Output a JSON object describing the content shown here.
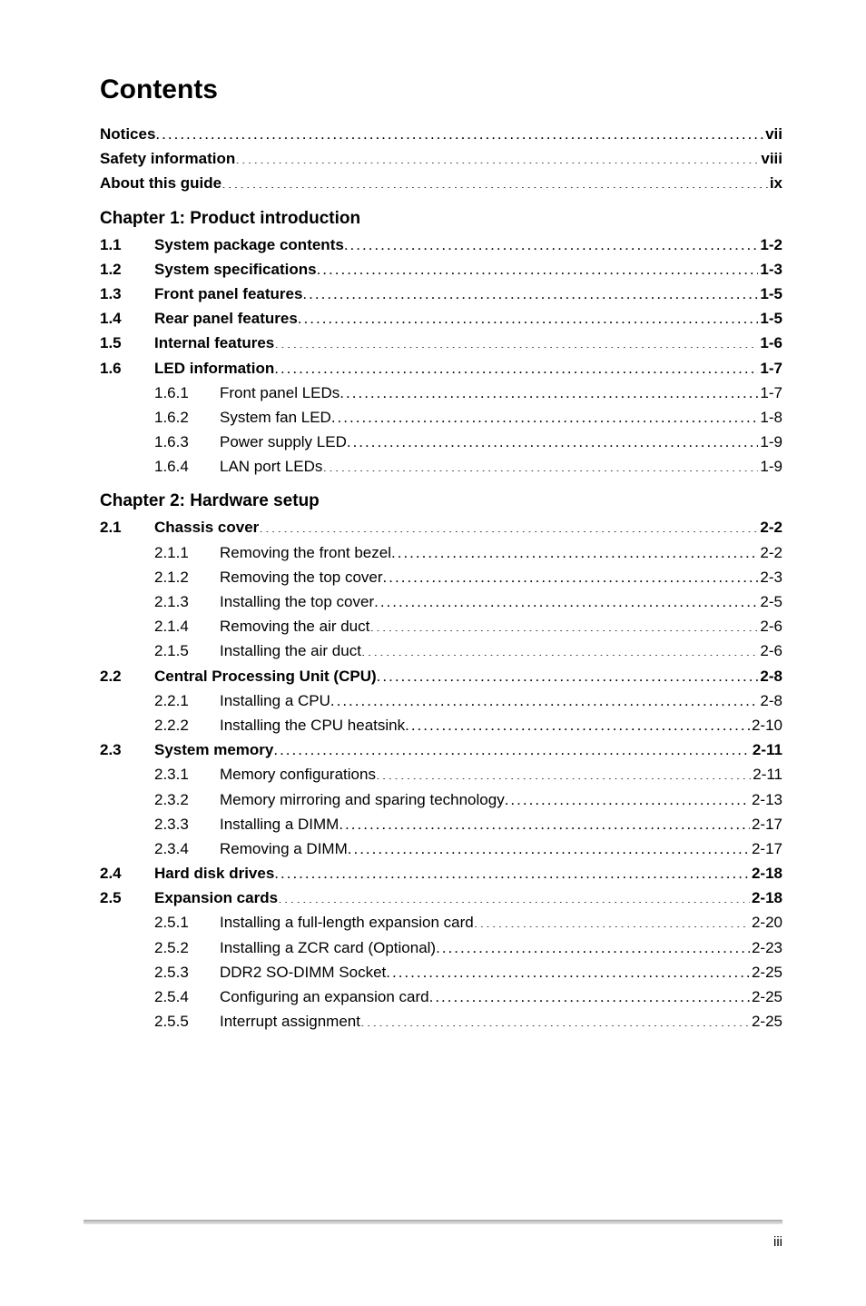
{
  "page": {
    "title": "Contents",
    "footer_pagenum": "iii",
    "title_fontsize": 30,
    "body_fontsize": 17,
    "chapter_heading_fontsize": 19,
    "font_family": "Arial",
    "text_color": "#000000",
    "background_color": "#ffffff",
    "outer_background_color": "#5a5a5a",
    "footer_rule_color": "#b9b9b9"
  },
  "front": [
    {
      "label": "Notices",
      "page": "vii"
    },
    {
      "label": "Safety information",
      "page": "viii"
    },
    {
      "label": "About this guide",
      "page": "ix"
    }
  ],
  "chap1": {
    "heading": "Chapter 1: Product introduction",
    "e11": {
      "num": "1.1",
      "label": "System package contents",
      "page": "1-2"
    },
    "e12": {
      "num": "1.2",
      "label": "System specifications",
      "page": "1-3"
    },
    "e13": {
      "num": "1.3",
      "label": "Front panel features",
      "page": "1-5"
    },
    "e14": {
      "num": "1.4",
      "label": "Rear panel features",
      "page": "1-5"
    },
    "e15": {
      "num": "1.5",
      "label": "Internal features",
      "page": "1-6"
    },
    "e16": {
      "num": "1.6",
      "label": "LED information",
      "page": "1-7"
    },
    "e161": {
      "num": "1.6.1",
      "label": "Front panel LEDs",
      "page": "1-7"
    },
    "e162": {
      "num": "1.6.2",
      "label": "System fan LED",
      "page": "1-8"
    },
    "e163": {
      "num": "1.6.3",
      "label": "Power supply LED",
      "page": "1-9"
    },
    "e164": {
      "num": "1.6.4",
      "label": "LAN port LEDs",
      "page": "1-9"
    }
  },
  "chap2": {
    "heading": "Chapter 2: Hardware setup",
    "e21": {
      "num": "2.1",
      "label": "Chassis cover",
      "page": "2-2"
    },
    "e211": {
      "num": "2.1.1",
      "label": "Removing the front bezel",
      "page": "2-2"
    },
    "e212": {
      "num": "2.1.2",
      "label": "Removing the top cover",
      "page": "2-3"
    },
    "e213": {
      "num": "2.1.3",
      "label": "Installing the top cover",
      "page": "2-5"
    },
    "e214": {
      "num": "2.1.4",
      "label": "Removing the air duct",
      "page": "2-6"
    },
    "e215": {
      "num": "2.1.5",
      "label": "Installing the air duct",
      "page": "2-6"
    },
    "e22": {
      "num": "2.2",
      "label": "Central Processing Unit (CPU)",
      "page": "2-8"
    },
    "e221": {
      "num": "2.2.1",
      "label": "Installing a CPU",
      "page": "2-8"
    },
    "e222": {
      "num": "2.2.2",
      "label": "Installing the CPU heatsink",
      "page": "2-10"
    },
    "e23": {
      "num": "2.3",
      "label": "System memory",
      "page": "2-11"
    },
    "e231": {
      "num": "2.3.1",
      "label": "Memory configurations",
      "page": "2-11"
    },
    "e232": {
      "num": "2.3.2",
      "label": "Memory mirroring and sparing technology",
      "page": "2-13"
    },
    "e233": {
      "num": "2.3.3",
      "label": "Installing a DIMM",
      "page": "2-17"
    },
    "e234": {
      "num": "2.3.4",
      "label": "Removing a DIMM",
      "page": "2-17"
    },
    "e24": {
      "num": "2.4",
      "label": "Hard disk drives",
      "page": "2-18"
    },
    "e25": {
      "num": "2.5",
      "label": "Expansion cards",
      "page": "2-18"
    },
    "e251": {
      "num": "2.5.1",
      "label": "Installing a full-length expansion card",
      "page": "2-20"
    },
    "e252": {
      "num": "2.5.2",
      "label": "Installing a ZCR card (Optional)",
      "page": "2-23"
    },
    "e253": {
      "num": "2.5.3",
      "label": "DDR2 SO-DIMM Socket",
      "page": "2-25"
    },
    "e254": {
      "num": "2.5.4",
      "label": "Configuring an expansion card",
      "page": "2-25"
    },
    "e255": {
      "num": "2.5.5",
      "label": "Interrupt assignment",
      "page": "2-25"
    }
  }
}
